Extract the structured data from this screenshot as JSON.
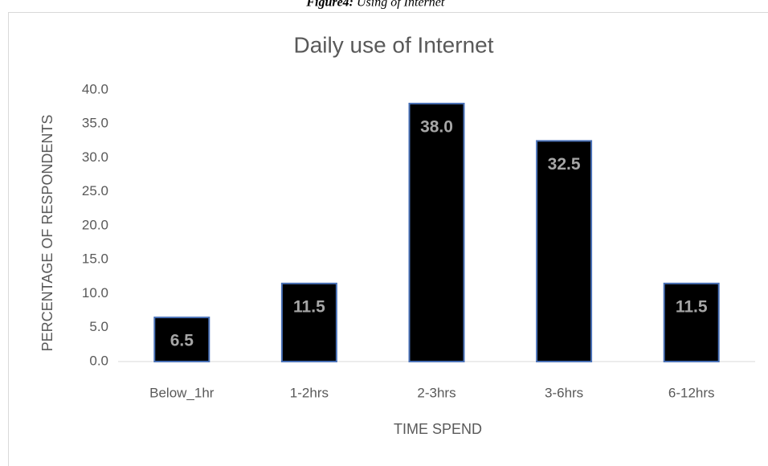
{
  "caption": {
    "label": "Figure4:",
    "text": "Using of Internet"
  },
  "chart_data": {
    "type": "bar",
    "title": "Daily use of Internet",
    "x_label": "TIME SPEND",
    "y_label": "PERCENTAGE OF RESPONDENTS",
    "categories": [
      "Below_1hr",
      "1-2hrs",
      "2-3hrs",
      "3-6hrs",
      "6-12hrs"
    ],
    "values": [
      6.5,
      11.5,
      38.0,
      32.5,
      11.5
    ],
    "value_labels": [
      "6.5",
      "11.5",
      "38.0",
      "32.5",
      "11.5"
    ],
    "color": "#000000",
    "edge_color": "#4a72b8",
    "ylim": [
      0,
      40
    ],
    "yticks": [
      {
        "value": 0,
        "label": "0.0"
      },
      {
        "value": 5,
        "label": "5.0"
      },
      {
        "value": 10,
        "label": "10.0"
      },
      {
        "value": 15,
        "label": "15.0"
      },
      {
        "value": 20,
        "label": "20.0"
      },
      {
        "value": 25,
        "label": "25.0"
      },
      {
        "value": 30,
        "label": "30.0"
      },
      {
        "value": 35,
        "label": "35.0"
      },
      {
        "value": 40,
        "label": "40.0"
      }
    ],
    "grid": false
  }
}
